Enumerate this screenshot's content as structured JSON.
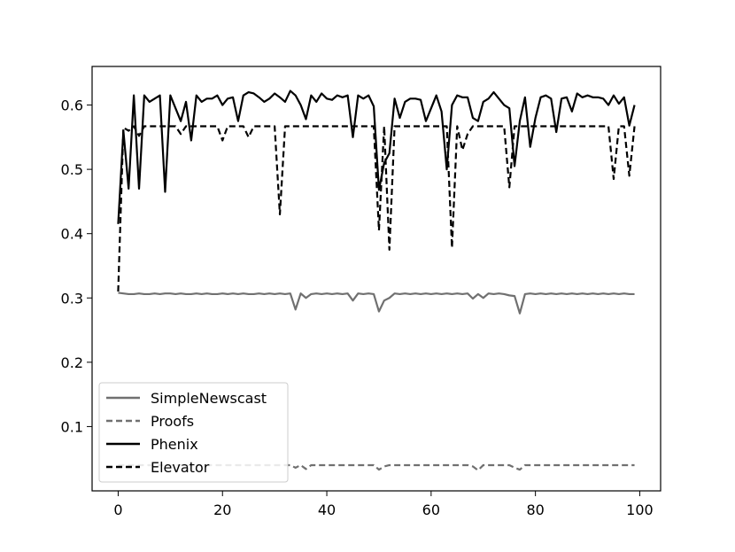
{
  "chart_data": {
    "type": "line",
    "title": "",
    "xlabel": "",
    "ylabel": "",
    "xlim": [
      -5,
      104
    ],
    "ylim": [
      0.0,
      0.66
    ],
    "x_ticks": [
      0,
      20,
      40,
      60,
      80,
      100
    ],
    "y_ticks": [
      0.1,
      0.2,
      0.3,
      0.4,
      0.5,
      0.6
    ],
    "x_tick_labels": [
      "0",
      "20",
      "40",
      "60",
      "80",
      "100"
    ],
    "y_tick_labels": [
      "0.1",
      "0.2",
      "0.3",
      "0.4",
      "0.5",
      "0.6"
    ],
    "grid": false,
    "legend_position": "lower-left",
    "series": [
      {
        "name": "SimpleNewscast",
        "color": "#707070",
        "dash": "solid",
        "values": [
          0.308,
          0.307,
          0.306,
          0.306,
          0.307,
          0.306,
          0.306,
          0.307,
          0.306,
          0.307,
          0.307,
          0.306,
          0.307,
          0.306,
          0.306,
          0.307,
          0.306,
          0.307,
          0.306,
          0.306,
          0.307,
          0.306,
          0.307,
          0.306,
          0.307,
          0.306,
          0.306,
          0.307,
          0.306,
          0.307,
          0.306,
          0.307,
          0.306,
          0.307,
          0.282,
          0.307,
          0.3,
          0.306,
          0.307,
          0.306,
          0.307,
          0.306,
          0.307,
          0.306,
          0.307,
          0.296,
          0.307,
          0.306,
          0.307,
          0.306,
          0.279,
          0.296,
          0.3,
          0.307,
          0.306,
          0.307,
          0.306,
          0.307,
          0.306,
          0.307,
          0.306,
          0.307,
          0.306,
          0.307,
          0.306,
          0.307,
          0.306,
          0.307,
          0.299,
          0.306,
          0.3,
          0.307,
          0.306,
          0.307,
          0.306,
          0.304,
          0.303,
          0.276,
          0.306,
          0.307,
          0.306,
          0.307,
          0.306,
          0.307,
          0.306,
          0.307,
          0.306,
          0.307,
          0.306,
          0.307,
          0.306,
          0.307,
          0.306,
          0.307,
          0.306,
          0.307,
          0.306,
          0.307,
          0.306,
          0.306
        ]
      },
      {
        "name": "Proofs",
        "color": "#707070",
        "dash": "dashed",
        "values": [
          0.04,
          0.04,
          0.04,
          0.04,
          0.04,
          0.04,
          0.04,
          0.04,
          0.04,
          0.04,
          0.04,
          0.04,
          0.04,
          0.04,
          0.04,
          0.04,
          0.04,
          0.04,
          0.04,
          0.04,
          0.04,
          0.04,
          0.04,
          0.04,
          0.04,
          0.04,
          0.04,
          0.04,
          0.04,
          0.04,
          0.04,
          0.04,
          0.04,
          0.04,
          0.036,
          0.04,
          0.034,
          0.04,
          0.04,
          0.04,
          0.04,
          0.04,
          0.04,
          0.04,
          0.04,
          0.04,
          0.04,
          0.04,
          0.04,
          0.04,
          0.033,
          0.038,
          0.04,
          0.04,
          0.04,
          0.04,
          0.04,
          0.04,
          0.04,
          0.04,
          0.04,
          0.04,
          0.04,
          0.04,
          0.04,
          0.04,
          0.04,
          0.04,
          0.038,
          0.032,
          0.04,
          0.04,
          0.04,
          0.04,
          0.04,
          0.04,
          0.036,
          0.033,
          0.04,
          0.04,
          0.04,
          0.04,
          0.04,
          0.04,
          0.04,
          0.04,
          0.04,
          0.04,
          0.04,
          0.04,
          0.04,
          0.04,
          0.04,
          0.04,
          0.04,
          0.04,
          0.04,
          0.04,
          0.04,
          0.04
        ]
      },
      {
        "name": "Phenix",
        "color": "#000000",
        "dash": "solid",
        "values": [
          0.415,
          0.56,
          0.47,
          0.615,
          0.47,
          0.615,
          0.605,
          0.61,
          0.615,
          0.465,
          0.615,
          0.595,
          0.575,
          0.605,
          0.545,
          0.615,
          0.605,
          0.61,
          0.61,
          0.615,
          0.6,
          0.61,
          0.612,
          0.575,
          0.615,
          0.62,
          0.618,
          0.612,
          0.605,
          0.61,
          0.618,
          0.612,
          0.605,
          0.622,
          0.615,
          0.6,
          0.578,
          0.615,
          0.605,
          0.618,
          0.61,
          0.608,
          0.615,
          0.612,
          0.615,
          0.55,
          0.615,
          0.61,
          0.615,
          0.598,
          0.468,
          0.51,
          0.525,
          0.61,
          0.58,
          0.605,
          0.61,
          0.61,
          0.608,
          0.575,
          0.595,
          0.615,
          0.59,
          0.5,
          0.6,
          0.615,
          0.612,
          0.612,
          0.58,
          0.575,
          0.605,
          0.61,
          0.62,
          0.61,
          0.6,
          0.595,
          0.505,
          0.575,
          0.612,
          0.535,
          0.58,
          0.612,
          0.615,
          0.61,
          0.558,
          0.61,
          0.612,
          0.59,
          0.618,
          0.612,
          0.615,
          0.612,
          0.612,
          0.61,
          0.6,
          0.615,
          0.602,
          0.612,
          0.568,
          0.6
        ]
      },
      {
        "name": "Elevator",
        "color": "#000000",
        "dash": "dashed",
        "values": [
          0.31,
          0.565,
          0.56,
          0.567,
          0.552,
          0.567,
          0.567,
          0.567,
          0.567,
          0.567,
          0.567,
          0.567,
          0.555,
          0.567,
          0.567,
          0.567,
          0.567,
          0.567,
          0.567,
          0.567,
          0.545,
          0.567,
          0.567,
          0.567,
          0.567,
          0.55,
          0.567,
          0.567,
          0.567,
          0.567,
          0.567,
          0.43,
          0.567,
          0.567,
          0.567,
          0.567,
          0.567,
          0.567,
          0.567,
          0.567,
          0.567,
          0.567,
          0.567,
          0.567,
          0.567,
          0.567,
          0.567,
          0.567,
          0.567,
          0.567,
          0.405,
          0.567,
          0.375,
          0.567,
          0.567,
          0.567,
          0.567,
          0.567,
          0.567,
          0.567,
          0.567,
          0.567,
          0.567,
          0.567,
          0.378,
          0.567,
          0.53,
          0.555,
          0.567,
          0.567,
          0.567,
          0.567,
          0.567,
          0.567,
          0.567,
          0.472,
          0.567,
          0.567,
          0.567,
          0.567,
          0.567,
          0.567,
          0.567,
          0.567,
          0.567,
          0.567,
          0.567,
          0.567,
          0.567,
          0.567,
          0.567,
          0.567,
          0.567,
          0.567,
          0.567,
          0.485,
          0.567,
          0.567,
          0.49,
          0.567
        ]
      }
    ]
  }
}
